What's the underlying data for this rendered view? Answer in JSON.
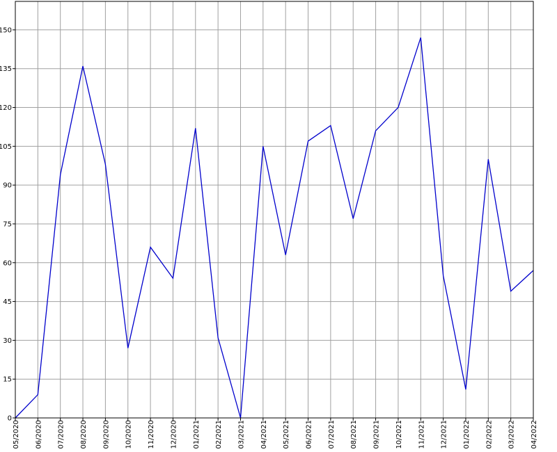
{
  "chart_data": {
    "type": "line",
    "title": "",
    "xlabel": "",
    "ylabel": "",
    "ylim": [
      0,
      161
    ],
    "yticks": [
      0,
      15,
      30,
      45,
      60,
      75,
      90,
      105,
      120,
      135,
      150
    ],
    "grid": true,
    "legend": "none",
    "x": [
      "05/2020",
      "06/2020",
      "07/2020",
      "08/2020",
      "09/2020",
      "10/2020",
      "11/2020",
      "12/2020",
      "01/2021",
      "02/2021",
      "03/2021",
      "04/2021",
      "05/2021",
      "06/2021",
      "07/2021",
      "08/2021",
      "09/2021",
      "10/2021",
      "11/2021",
      "12/2021",
      "01/2022",
      "02/2022",
      "03/2022",
      "04/2022"
    ],
    "series": [
      {
        "color": "#0000cc",
        "values": [
          0,
          9,
          94,
          136,
          98,
          27,
          66,
          54,
          112,
          31,
          0,
          105,
          63,
          107,
          113,
          77,
          111,
          120,
          147,
          55,
          11,
          100,
          49,
          57
        ]
      }
    ],
    "colors": {
      "grid": "#a0a0a0",
      "axis": "#000000",
      "line": "#0000cc",
      "background": "#ffffff"
    }
  }
}
